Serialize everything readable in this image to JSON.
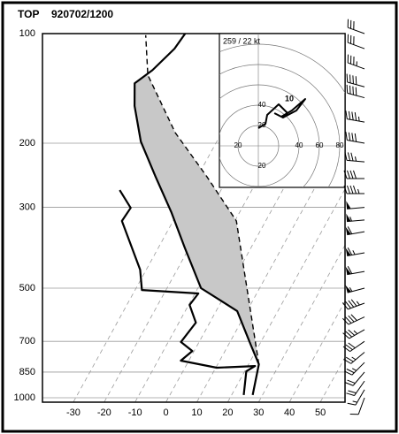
{
  "chart_data": {
    "type": "skewt",
    "station": "TOP",
    "time": "920702/1200",
    "ylim": [
      1000,
      100
    ],
    "yticks": [
      100,
      200,
      300,
      500,
      700,
      850,
      1000
    ],
    "log_y": true,
    "xlim": [
      -40,
      58
    ],
    "xticks": [
      -30,
      -20,
      -10,
      0,
      10,
      20,
      30,
      40,
      50
    ],
    "grid": true,
    "series": [
      {
        "style": "solid",
        "color": "#000000",
        "width": 2.2,
        "pressure": [
          983,
          809,
          715,
          578,
          500,
          387,
          309,
          247,
          198,
          158,
          137,
          126,
          110,
          100
        ],
        "temperature": [
          27.6,
          24.1,
          18.0,
          7.6,
          -8.2,
          -20.7,
          -31.4,
          -42.8,
          -53.8,
          -62.2,
          -66.2,
          -62.8,
          -59.5,
          -58.7
        ]
      },
      {
        "style": "dashed",
        "color": "#000000",
        "width": 1.4,
        "pressure": [
          809,
          327,
          247,
          187,
          130,
          101
        ],
        "temperature": [
          24.1,
          -8.7,
          -26.2,
          -44.3,
          -63.4,
          -71.2
        ]
      },
      {
        "style": "solid",
        "color": "#000000",
        "width": 2.2,
        "pressure": [
          983,
          846,
          818,
          827,
          791,
          744,
          703,
          622,
          556,
          517,
          506,
          445,
          327,
          301,
          269
        ],
        "temperature": [
          24.7,
          21.3,
          23.2,
          11.1,
          -1.8,
          0.2,
          -5.1,
          -3.7,
          -8.9,
          -8.1,
          -27.0,
          -31.2,
          -45.8,
          -45.3,
          -52.0
        ]
      }
    ],
    "cape_fill": "#c8c8c8",
    "winds": {
      "pressure": [
        100,
        110,
        125,
        140,
        150,
        175,
        200,
        225,
        250,
        275,
        300,
        325,
        350,
        400,
        450,
        500,
        550,
        600,
        650,
        700,
        750,
        800,
        850,
        900,
        950,
        1000
      ],
      "speed": [
        30,
        30,
        35,
        40,
        40,
        45,
        40,
        35,
        40,
        45,
        50,
        55,
        60,
        65,
        60,
        55,
        45,
        40,
        35,
        30,
        25,
        25,
        20,
        20,
        15,
        10
      ],
      "direction": [
        290,
        290,
        290,
        285,
        285,
        280,
        280,
        275,
        270,
        270,
        265,
        265,
        260,
        260,
        260,
        255,
        250,
        245,
        240,
        235,
        230,
        225,
        220,
        215,
        210,
        200
      ]
    },
    "hodograph": {
      "title": "259 / 22 kt",
      "annotation": "10",
      "rings": [
        20,
        40,
        60,
        80,
        100
      ],
      "xticks": [
        {
          "value": -20,
          "label": "20"
        },
        40,
        60,
        80
      ],
      "yticks": [
        {
          "value": -20,
          "label": "20"
        },
        20,
        40
      ],
      "u": [
        0,
        7,
        8.7,
        20,
        28.7,
        22.6,
        33,
        46.1,
        37.4,
        24.3,
        15.7
      ],
      "v": [
        17.4,
        21.7,
        30.4,
        40.9,
        32.2,
        28.7,
        34.8,
        46.1,
        34.8,
        27.8,
        32.2
      ]
    }
  }
}
